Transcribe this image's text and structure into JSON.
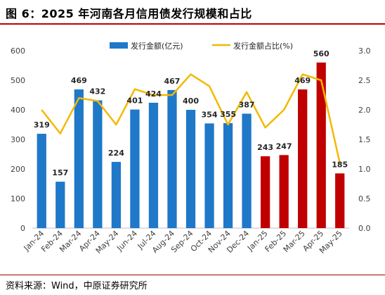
{
  "title": "图 6：2025 年河南各月信用债发行规模和占比",
  "source": "资料来源：Wind，中原证券研究所",
  "colors": {
    "bar_2024": "#1f78c8",
    "bar_2025": "#c00000",
    "line": "#f5b800",
    "accent": "#c00000"
  },
  "chart_data": {
    "type": "bar",
    "categories": [
      "Jan-24",
      "Feb-24",
      "Mar-24",
      "Apr-24",
      "May-24",
      "Jun-24",
      "Jul-24",
      "Aug-24",
      "Sep-24",
      "Oct-24",
      "Nov-24",
      "Dec-24",
      "Jan-25",
      "Feb-25",
      "Mar-25",
      "Apr-25",
      "May-25"
    ],
    "series": [
      {
        "name": "发行金额(亿元)",
        "type": "bar",
        "axis": "left",
        "values": [
          319,
          157,
          469,
          432,
          224,
          401,
          424,
          467,
          400,
          354,
          355,
          387,
          243,
          247,
          469,
          560,
          185
        ]
      },
      {
        "name": "发行金额占比(%)",
        "type": "line",
        "axis": "right",
        "values": [
          2.0,
          1.6,
          2.2,
          2.15,
          1.75,
          2.35,
          2.25,
          2.25,
          2.6,
          2.4,
          1.75,
          2.3,
          1.7,
          2.0,
          2.6,
          2.5,
          1.1
        ]
      }
    ],
    "data_labels": [
      "319",
      "157",
      "469",
      "432",
      "224",
      "401",
      "424",
      "467",
      "400",
      "354",
      "355",
      "387",
      "243",
      "247",
      "469",
      "560",
      "185"
    ],
    "ylim": [
      0,
      600
    ],
    "y_ticks": [
      "0",
      "100",
      "200",
      "300",
      "400",
      "500",
      "600"
    ],
    "y2lim": [
      0,
      3.0
    ],
    "y2_ticks": [
      "0.0",
      "0.5",
      "1.0",
      "1.5",
      "2.0",
      "2.5",
      "3.0"
    ],
    "legend_position": "top",
    "grid": false
  }
}
